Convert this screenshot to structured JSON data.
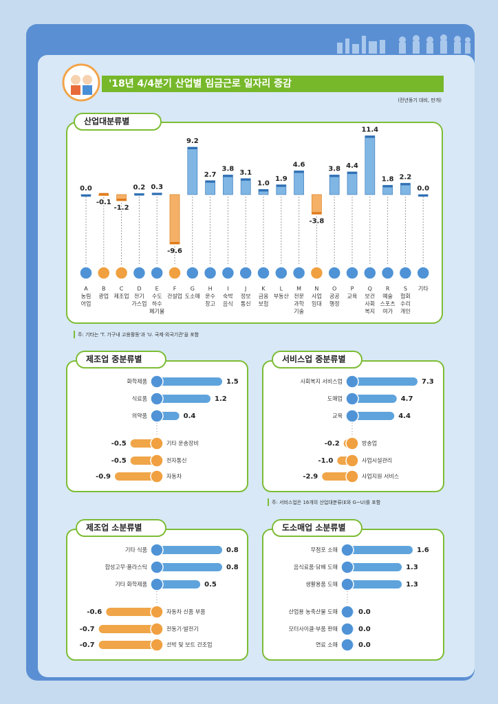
{
  "title": "'18년 4/4분기 산업별 임금근로 일자리 증감",
  "unit": "(전년동기 대비, 만개)",
  "chart_data": [
    {
      "type": "bar",
      "title": "산업대분류별",
      "codes": [
        "A",
        "B",
        "C",
        "D",
        "E",
        "F",
        "G",
        "H",
        "I",
        "J",
        "K",
        "L",
        "M",
        "N",
        "O",
        "P",
        "Q",
        "R",
        "S",
        null
      ],
      "categories": [
        [
          "농림",
          "어업"
        ],
        [
          "광업"
        ],
        [
          "제조업"
        ],
        [
          "전기",
          "가스업"
        ],
        [
          "수도",
          "하수",
          "폐기물"
        ],
        [
          "건설업"
        ],
        [
          "도소매"
        ],
        [
          "운수",
          "창고"
        ],
        [
          "숙박",
          "음식"
        ],
        [
          "정보",
          "통신"
        ],
        [
          "금융",
          "보험"
        ],
        [
          "부동산"
        ],
        [
          "전문",
          "과학",
          "기술"
        ],
        [
          "사업",
          "임대"
        ],
        [
          "공공",
          "행정"
        ],
        [
          "교육"
        ],
        [
          "보건",
          "사회",
          "복지"
        ],
        [
          "예술",
          "스포츠",
          "여가"
        ],
        [
          "협회",
          "수리",
          "개인"
        ],
        [
          "기타"
        ]
      ],
      "values": [
        0.0,
        -0.1,
        -1.2,
        0.2,
        0.3,
        -9.6,
        9.2,
        2.7,
        3.8,
        3.1,
        1.0,
        1.9,
        4.6,
        -3.8,
        3.8,
        4.4,
        11.4,
        1.8,
        2.2,
        0.0
      ],
      "value_labels": [
        "0.0",
        "-0.1",
        "-1.2",
        "0.2",
        "0.3",
        "-9.6",
        "9.2",
        "2.7",
        "3.8",
        "3.1",
        "1.0",
        "1.9",
        "4.6",
        "-3.8",
        "3.8",
        "4.4",
        "11.4",
        "1.8",
        "2.2",
        "0.0"
      ],
      "colors": {
        "positive": "#7fb6e4",
        "negative": "#f4b066"
      },
      "note": "주: 기타는 'T. 가구내 고용활동'과 'U. 국제·외국기관'을 포함"
    },
    {
      "type": "hbar",
      "title": "제조업 중분류별",
      "categories": [
        "화학제품",
        "식료품",
        "의약품",
        "기타 운송장비",
        "전자통신",
        "자동차"
      ],
      "values": [
        1.5,
        1.2,
        0.4,
        -0.5,
        -0.5,
        -0.9
      ],
      "value_labels": [
        "1.5",
        "1.2",
        "0.4",
        "-0.5",
        "-0.5",
        "-0.9"
      ],
      "colors": {
        "positive": "#5ea3dc",
        "negative": "#f0a548"
      }
    },
    {
      "type": "hbar",
      "title": "서비스업 중분류별",
      "categories": [
        "사회복지 서비스업",
        "도매업",
        "교육",
        "방송업",
        "사업시설관리",
        "사업지원 서비스"
      ],
      "values": [
        7.3,
        4.7,
        4.4,
        -0.2,
        -1.0,
        -2.9
      ],
      "value_labels": [
        "7.3",
        "4.7",
        "4.4",
        "-0.2",
        "-1.0",
        "-2.9"
      ],
      "colors": {
        "positive": "#5ea3dc",
        "negative": "#f0a548"
      },
      "note": "주: 서비스업은 16개의 산업대분류(E와 G~U)를 포함"
    },
    {
      "type": "hbar",
      "title": "제조업 소분류별",
      "categories": [
        "기타 식품",
        "합성고무·플라스틱",
        "기타 화학제품",
        "자동차 신품 부품",
        "전동기·발전기",
        "선박 및 보트 건조업"
      ],
      "values": [
        0.8,
        0.8,
        0.5,
        -0.6,
        -0.7,
        -0.7
      ],
      "value_labels": [
        "0.8",
        "0.8",
        "0.5",
        "-0.6",
        "-0.7",
        "-0.7"
      ],
      "colors": {
        "positive": "#5ea3dc",
        "negative": "#f0a548"
      }
    },
    {
      "type": "hbar",
      "title": "도소매업 소분류별",
      "categories": [
        "무점포 소매",
        "음식료품·담배 도매",
        "생활용품 도매",
        "산업용 농축산물 도매",
        "모터사이클·부품 판매",
        "연료 소매"
      ],
      "values": [
        1.6,
        1.3,
        1.3,
        0.0,
        0.0,
        0.0
      ],
      "value_labels": [
        "1.6",
        "1.3",
        "1.3",
        "0.0",
        "0.0",
        "0.0"
      ],
      "colors": {
        "positive": "#5ea3dc",
        "negative": "#f0a548"
      }
    }
  ]
}
